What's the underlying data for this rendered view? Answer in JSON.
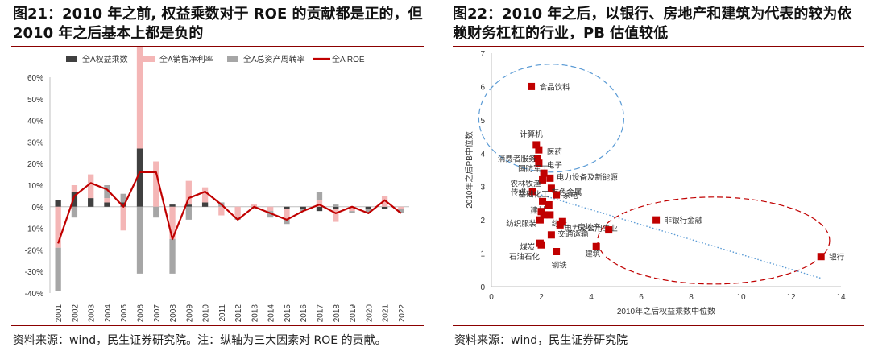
{
  "left": {
    "title": "图21：2010 年之前, 权益乘数对于 ROE 的贡献都是正的，但 2010 年之后基本上都是负的",
    "source": "资料来源：wind，民生证券研究院。注：纵轴为三大因素对 ROE 的贡献。",
    "colors": {
      "equity": "#404040",
      "margin": "#f4b6b6",
      "turnover": "#a6a6a6",
      "roe": "#c00000"
    }
  },
  "right": {
    "title": "图22：2010 年之后，以银行、房地产和建筑为代表的较为依赖财务杠杠的行业，PB 估值较低",
    "source": "资料来源：wind，民生证券研究院",
    "colors": {
      "point": "#c00000",
      "trend": "#5b9bd5",
      "ellipse_blue": "#5b9bd5",
      "ellipse_red": "#c00000"
    }
  },
  "chart_data": [
    {
      "type": "bar",
      "title": "",
      "xlabel": "",
      "ylabel": "",
      "ylim": [
        -0.4,
        0.6
      ],
      "yticks": [
        "60%",
        "50%",
        "40%",
        "30%",
        "20%",
        "10%",
        "0%",
        "-10%",
        "-20%",
        "-30%",
        "-40%"
      ],
      "categories": [
        "2001",
        "2002",
        "2003",
        "2004",
        "2005",
        "2006",
        "2007",
        "2008",
        "2009",
        "2010",
        "2011",
        "2012",
        "2013",
        "2014",
        "2015",
        "2016",
        "2017",
        "2018",
        "2019",
        "2020",
        "2021",
        "2022"
      ],
      "legend_position": "top",
      "series": [
        {
          "name": "全A权益乘数",
          "kind": "bar",
          "values": [
            0.03,
            0.07,
            0.04,
            0.02,
            0.02,
            0.27,
            0.0,
            0.01,
            0.01,
            0.02,
            0.0,
            0.0,
            0.0,
            0.0,
            -0.01,
            -0.01,
            -0.02,
            -0.01,
            0.0,
            -0.01,
            -0.01,
            0.0
          ]
        },
        {
          "name": "全A销售净利率",
          "kind": "bar",
          "values": [
            -0.19,
            0.03,
            0.11,
            0.02,
            -0.11,
            0.47,
            0.21,
            -0.15,
            0.11,
            0.07,
            -0.04,
            -0.05,
            0.01,
            -0.02,
            -0.05,
            0.0,
            0.03,
            -0.06,
            -0.02,
            0.0,
            0.05,
            -0.01
          ]
        },
        {
          "name": "全A总资产周转率",
          "kind": "bar",
          "values": [
            -0.2,
            -0.05,
            0.0,
            0.06,
            0.04,
            -0.31,
            -0.05,
            -0.16,
            -0.06,
            0.0,
            0.02,
            -0.01,
            -0.01,
            -0.03,
            -0.02,
            -0.01,
            0.04,
            0.01,
            -0.01,
            -0.02,
            0.0,
            -0.02
          ]
        },
        {
          "name": "全A ROE",
          "kind": "line",
          "values": [
            -0.17,
            0.05,
            0.11,
            0.08,
            0.0,
            0.16,
            0.16,
            -0.15,
            0.04,
            0.07,
            0.01,
            -0.06,
            0.0,
            -0.03,
            -0.06,
            -0.02,
            0.01,
            -0.03,
            0.0,
            -0.03,
            0.03,
            -0.03
          ]
        }
      ]
    },
    {
      "type": "scatter",
      "title": "",
      "xlabel": "2010年之后权益乘数中位数",
      "ylabel": "2010年之后PB中位数",
      "xlim": [
        0,
        14
      ],
      "ylim": [
        0,
        7
      ],
      "xticks": [
        0,
        2,
        4,
        6,
        8,
        10,
        12,
        14
      ],
      "yticks": [
        0,
        1,
        2,
        3,
        4,
        5,
        6,
        7
      ],
      "trendline": {
        "style": "dotted",
        "from": [
          2.0,
          2.75
        ],
        "to": [
          13.2,
          0.25
        ]
      },
      "points": [
        {
          "label": "食品饮料",
          "x": 1.6,
          "y": 6.0
        },
        {
          "label": "计算机",
          "x": 1.8,
          "y": 4.25
        },
        {
          "label": "医药",
          "x": 1.9,
          "y": 4.1
        },
        {
          "label": "消费者服务",
          "x": 1.85,
          "y": 3.85
        },
        {
          "label": "电子",
          "x": 1.9,
          "y": 3.7
        },
        {
          "label": "国防军工",
          "x": 2.1,
          "y": 3.4
        },
        {
          "label": "电力设备及新能源",
          "x": 2.35,
          "y": 3.25
        },
        {
          "label": "农林牧渔",
          "x": 2.05,
          "y": 3.2
        },
        {
          "label": "有色金属",
          "x": 2.4,
          "y": 2.95
        },
        {
          "label": "传媒",
          "x": 1.65,
          "y": 2.85
        },
        {
          "label": "家电",
          "x": 2.6,
          "y": 2.75
        },
        {
          "label": "基础化工",
          "x": 2.05,
          "y": 2.55
        },
        {
          "label": "建材",
          "x": 2.3,
          "y": 2.45
        },
        {
          "label": "综合",
          "x": 2.35,
          "y": 2.15
        },
        {
          "label": "轻工制造",
          "x": 2.0,
          "y": 2.25
        },
        {
          "label": "电力及公用事业",
          "x": 2.85,
          "y": 1.95
        },
        {
          "label": "纺织服装",
          "x": 1.95,
          "y": 2.0
        },
        {
          "label": "机械",
          "x": 2.75,
          "y": 1.85
        },
        {
          "label": "商贸零售",
          "x": 2.1,
          "y": 2.15
        },
        {
          "label": "交通运输",
          "x": 2.4,
          "y": 1.55
        },
        {
          "label": "煤炭",
          "x": 1.95,
          "y": 1.3
        },
        {
          "label": "石油石化",
          "x": 2.0,
          "y": 1.25
        },
        {
          "label": "钢铁",
          "x": 2.6,
          "y": 1.05
        },
        {
          "label": "房地产",
          "x": 4.7,
          "y": 1.7
        },
        {
          "label": "建筑",
          "x": 4.2,
          "y": 1.2
        },
        {
          "label": "非银行金融",
          "x": 6.6,
          "y": 2.0
        },
        {
          "label": "银行",
          "x": 13.2,
          "y": 0.9
        }
      ],
      "labelled": [
        "食品饮料",
        "计算机",
        "医药",
        "消费者服务",
        "电子",
        "国防军工",
        "电力设备及新能源",
        "农林牧渔",
        "有色金属",
        "传媒",
        "家电",
        "基础化工",
        "建材",
        "综合",
        "电力及公用事业",
        "纺织服装",
        "交通运输",
        "煤炭",
        "石油石化",
        "钢铁",
        "房地产",
        "建筑",
        "非银行金融",
        "银行"
      ]
    }
  ]
}
